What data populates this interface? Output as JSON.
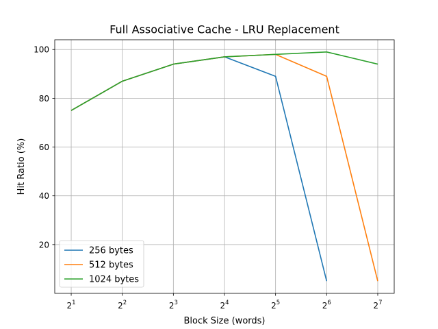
{
  "chart_data": {
    "type": "line",
    "title": "Full Associative Cache - LRU Replacement",
    "xlabel": "Block Size (words)",
    "ylabel": "Hit Ratio (%)",
    "x_scale": "log2",
    "x_ticks": [
      {
        "value": 2,
        "base": "2",
        "exp": "1"
      },
      {
        "value": 4,
        "base": "2",
        "exp": "2"
      },
      {
        "value": 8,
        "base": "2",
        "exp": "3"
      },
      {
        "value": 16,
        "base": "2",
        "exp": "4"
      },
      {
        "value": 32,
        "base": "2",
        "exp": "5"
      },
      {
        "value": 64,
        "base": "2",
        "exp": "6"
      },
      {
        "value": 128,
        "base": "2",
        "exp": "7"
      }
    ],
    "y_ticks": [
      20,
      40,
      60,
      80,
      100
    ],
    "xlim": [
      1.6,
      160
    ],
    "ylim": [
      0,
      104
    ],
    "grid": true,
    "legend_position": "lower-left",
    "series": [
      {
        "name": "256 bytes",
        "color": "#1f77b4",
        "x": [
          2,
          4,
          8,
          16,
          32,
          64
        ],
        "values": [
          75,
          87,
          94,
          97,
          89,
          5
        ]
      },
      {
        "name": "512 bytes",
        "color": "#ff7f0e",
        "x": [
          2,
          4,
          8,
          16,
          32,
          64,
          128
        ],
        "values": [
          75,
          87,
          94,
          97,
          98,
          89,
          5
        ]
      },
      {
        "name": "1024 bytes",
        "color": "#2ca02c",
        "x": [
          2,
          4,
          8,
          16,
          32,
          64,
          128
        ],
        "values": [
          75,
          87,
          94,
          97,
          98,
          99,
          94
        ]
      }
    ]
  }
}
